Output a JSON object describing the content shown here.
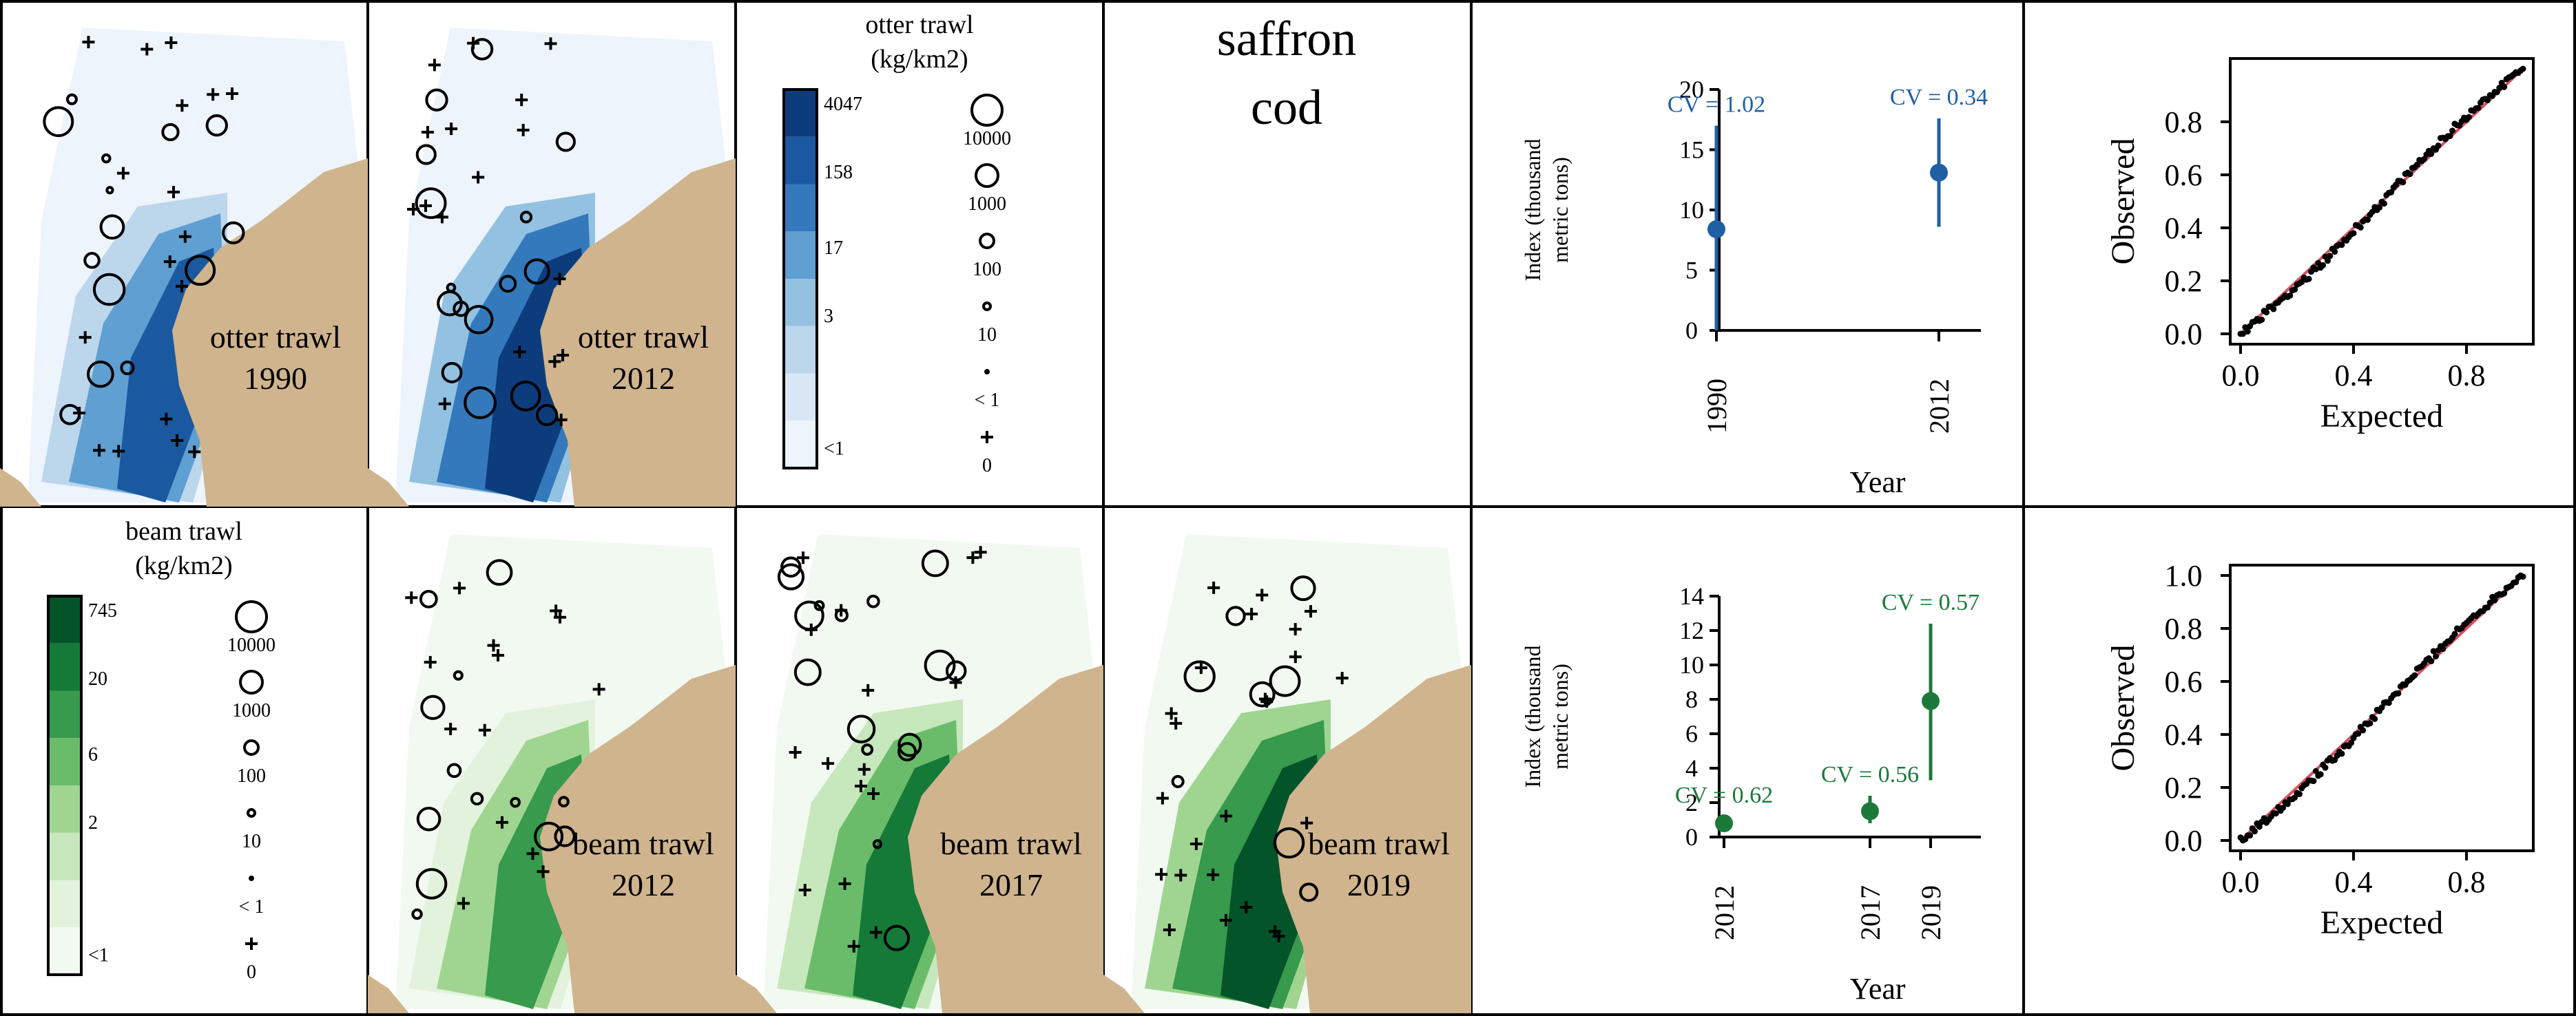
{
  "figure": {
    "species_title": [
      "saffron",
      "cod"
    ],
    "colors": {
      "otter_accent": "#1f5fa6",
      "beam_accent": "#1b7a3a",
      "land": "#cfb48e",
      "qq_line": "#d9505f",
      "otter_ramp": [
        "#ffffff",
        "#eef4fb",
        "#d9e7f5",
        "#bcd6ec",
        "#93c1e1",
        "#5f9fd1",
        "#3479bb",
        "#1a59a0",
        "#0d3c7c"
      ],
      "beam_ramp": [
        "#ffffff",
        "#f2f9f1",
        "#e2f2dc",
        "#c7e7bd",
        "#a0d591",
        "#6bbc6a",
        "#379a4c",
        "#157a38",
        "#04542a"
      ]
    }
  },
  "chart_data": [
    {
      "type": "map",
      "id": "otter-1990",
      "label_lines": [
        "otter trawl",
        "1990"
      ],
      "survey": "otter trawl",
      "year": 1990
    },
    {
      "type": "map",
      "id": "otter-2012",
      "label_lines": [
        "otter trawl",
        "2012"
      ],
      "survey": "otter trawl",
      "year": 2012
    },
    {
      "type": "legend",
      "id": "otter-legend",
      "title_lines": [
        "otter trawl",
        "(kg/km2)"
      ],
      "color_breaks": [
        "4047",
        "158",
        "17",
        "3",
        "<1"
      ],
      "bubble_labels": [
        "10000",
        "1000",
        "100",
        "10",
        "< 1",
        "0"
      ]
    },
    {
      "type": "scatter",
      "id": "otter-index",
      "ylabel_lines": [
        "Index (thousand",
        "metric tons)"
      ],
      "xlabel": "Year",
      "ylim": [
        0,
        20
      ],
      "yticks": [
        0,
        5,
        10,
        15,
        20
      ],
      "series": [
        {
          "name": "otter trawl",
          "points": [
            {
              "x": 1990,
              "y": 8.4,
              "lo": 0,
              "hi": 17.0,
              "cv_label": "CV = 1.02"
            },
            {
              "x": 2012,
              "y": 13.1,
              "lo": 8.6,
              "hi": 17.6,
              "cv_label": "CV = 0.34"
            }
          ]
        }
      ]
    },
    {
      "type": "qq",
      "id": "otter-qq",
      "xlabel": "Expected",
      "ylabel": "Observed",
      "xlim": [
        0,
        1
      ],
      "ylim": [
        0,
        1
      ],
      "xticks": [
        "0.0",
        "0.4",
        "0.8"
      ],
      "yticks": [
        "0.0",
        "0.2",
        "0.4",
        "0.6",
        "0.8"
      ]
    },
    {
      "type": "legend",
      "id": "beam-legend",
      "title_lines": [
        "beam trawl",
        "(kg/km2)"
      ],
      "color_breaks": [
        "745",
        "20",
        "6",
        "2",
        "<1"
      ],
      "bubble_labels": [
        "10000",
        "1000",
        "100",
        "10",
        "< 1",
        "0"
      ]
    },
    {
      "type": "map",
      "id": "beam-2012",
      "label_lines": [
        "beam trawl",
        "2012"
      ],
      "survey": "beam trawl",
      "year": 2012
    },
    {
      "type": "map",
      "id": "beam-2017",
      "label_lines": [
        "beam trawl",
        "2017"
      ],
      "survey": "beam trawl",
      "year": 2017
    },
    {
      "type": "map",
      "id": "beam-2019",
      "label_lines": [
        "beam trawl",
        "2019"
      ],
      "survey": "beam trawl",
      "year": 2019
    },
    {
      "type": "scatter",
      "id": "beam-index",
      "ylabel_lines": [
        "Index (thousand",
        "metric tons)"
      ],
      "xlabel": "Year",
      "ylim": [
        0,
        14
      ],
      "yticks": [
        0,
        2,
        4,
        6,
        8,
        10,
        12,
        14
      ],
      "series": [
        {
          "name": "beam trawl",
          "points": [
            {
              "x": 2012,
              "y": 0.8,
              "lo": 0.4,
              "hi": 1.2,
              "cv_label": "CV = 0.62"
            },
            {
              "x": 2017,
              "y": 1.5,
              "lo": 0.8,
              "hi": 2.4,
              "cv_label": "CV = 0.56"
            },
            {
              "x": 2019,
              "y": 7.9,
              "lo": 3.3,
              "hi": 12.4,
              "cv_label": "CV = 0.57"
            }
          ]
        }
      ]
    },
    {
      "type": "qq",
      "id": "beam-qq",
      "xlabel": "Expected",
      "ylabel": "Observed",
      "xlim": [
        0,
        1
      ],
      "ylim": [
        0,
        1
      ],
      "xticks": [
        "0.0",
        "0.4",
        "0.8"
      ],
      "yticks": [
        "0.0",
        "0.2",
        "0.4",
        "0.6",
        "0.8",
        "1.0"
      ]
    }
  ]
}
